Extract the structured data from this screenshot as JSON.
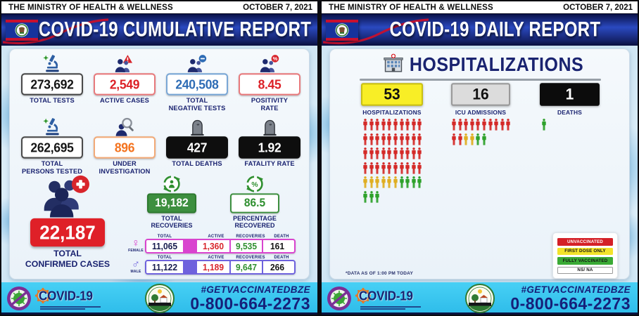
{
  "meta": {
    "ministry": "THE MINISTRY OF HEALTH & WELLNESS",
    "date": "OCTOBER 7, 2021"
  },
  "left_panel": {
    "title": "COVID-19 CUMULATIVE REPORT",
    "stats": [
      {
        "value": "273,692",
        "label": "TOTAL TESTS",
        "box_bg": "#ffffff",
        "box_border": "#4a4a4a",
        "value_color": "#141414"
      },
      {
        "value": "2,549",
        "label": "ACTIVE CASES",
        "box_bg": "#ffffff",
        "box_border": "#e87a7d",
        "value_color": "#dc2127"
      },
      {
        "value": "240,508",
        "label": "TOTAL\nNEGATIVE TESTS",
        "box_bg": "#ffffff",
        "box_border": "#7aa7d6",
        "value_color": "#2e6cb5"
      },
      {
        "value": "8.45",
        "label": "POSITIVITY\nRATE",
        "box_bg": "#ffffff",
        "box_border": "#e87a7d",
        "value_color": "#dc2127"
      },
      {
        "value": "262,695",
        "label": "TOTAL\nPERSONS TESTED",
        "box_bg": "#ffffff",
        "box_border": "#4a4a4a",
        "value_color": "#141414"
      },
      {
        "value": "896",
        "label": "UNDER\nINVESTIGATION",
        "box_bg": "#ffffff",
        "box_border": "#f2aa78",
        "value_color": "#f4731f"
      },
      {
        "value": "427",
        "label": "TOTAL DEATHS",
        "box_bg": "#0e0e0e",
        "box_border": "#0e0e0e",
        "value_color": "#ffffff"
      },
      {
        "value": "1.92",
        "label": "FATALITY RATE",
        "box_bg": "#0e0e0e",
        "box_border": "#0e0e0e",
        "value_color": "#ffffff"
      }
    ],
    "confirmed": {
      "value": "22,187",
      "label": "TOTAL\nCONFIRMED CASES"
    },
    "recovered": {
      "value": "19,182",
      "label": "TOTAL\nRECOVERIES"
    },
    "percent_recovered": {
      "value": "86.5",
      "label": "PERCENTAGE\nRECOVERED"
    },
    "gender_table": {
      "headers": [
        "TOTAL",
        "ACTIVE",
        "RECOVERIES",
        "DEATH"
      ],
      "rows": [
        {
          "gender": "FEMALE",
          "symbol": "♀",
          "total": "11,065",
          "active": "1,360",
          "recoveries": "9,535",
          "death": "161",
          "accent": "#d944cf"
        },
        {
          "gender": "MALE",
          "symbol": "♂",
          "total": "11,122",
          "active": "1,189",
          "recoveries": "9,647",
          "death": "266",
          "accent": "#6e62dd"
        }
      ]
    }
  },
  "right_panel": {
    "title": "COVID-19 DAILY REPORT",
    "section_title": "HOSPITALIZATIONS",
    "boxes": [
      {
        "value": "53",
        "label": "HOSPITALIZATIONS",
        "bg": "#f8ee26",
        "fg": "#111111",
        "border": "#c9c013"
      },
      {
        "value": "16",
        "label": "ICU ADMISSIONS",
        "bg": "#dcdcdc",
        "fg": "#111111",
        "border": "#9a9a9a"
      },
      {
        "value": "1",
        "label": "DEATHS",
        "bg": "#0c0c0c",
        "fg": "#ffffff",
        "border": "#0c0c0c"
      }
    ],
    "person_colors": {
      "red": "#d42a28",
      "yellow": "#dfae22",
      "green": "#2ea12b"
    },
    "person_grids": {
      "hospitalizations": [
        [
          "red",
          "red",
          "red",
          "red",
          "red",
          "red",
          "red",
          "red",
          "red",
          "red"
        ],
        [
          "red",
          "red",
          "red",
          "red",
          "red",
          "red",
          "red",
          "red",
          "red",
          "red"
        ],
        [
          "red",
          "red",
          "red",
          "red",
          "red",
          "red",
          "red",
          "red",
          "red",
          "red"
        ],
        [
          "red",
          "red",
          "red",
          "red",
          "red",
          "red",
          "red",
          "red",
          "red",
          "red"
        ],
        [
          "yellow",
          "yellow",
          "yellow",
          "yellow",
          "yellow",
          "yellow",
          "green",
          "green",
          "green",
          "green"
        ],
        [
          "green",
          "green",
          "green"
        ]
      ],
      "icu_admissions": [
        [
          "red",
          "red",
          "red",
          "red",
          "red",
          "red",
          "red",
          "red",
          "red",
          "red"
        ],
        [
          "red",
          "red",
          "yellow",
          "yellow",
          "green",
          "green"
        ]
      ],
      "deaths": [
        [
          "green"
        ]
      ]
    },
    "legend": [
      {
        "label": "UNVACCINATED",
        "bg": "#d42027",
        "fg": "#ffffff"
      },
      {
        "label": "FIRST DOSE ONLY",
        "bg": "#f3e32a",
        "fg": "#111111"
      },
      {
        "label": "FULLY VACCINATED",
        "bg": "#3aaa35",
        "fg": "#111111"
      },
      {
        "label": "NS/ NA",
        "bg": "#ffffff",
        "fg": "#111111"
      }
    ],
    "footnote": "*DATA AS OF 1:00 PM TODAY"
  },
  "footer": {
    "covid_logo_text": "COVID-19",
    "hashtag": "#GETVACCINATEDBZE",
    "phone": "0-800-664-2273"
  }
}
